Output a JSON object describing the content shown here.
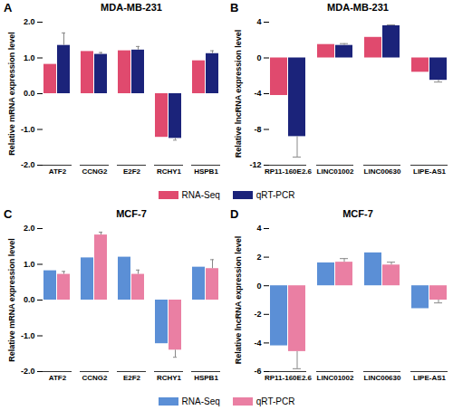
{
  "chart_data": [
    {
      "type": "bar",
      "label": "A",
      "title": "MDA-MB-231",
      "y_label": "Relative mRNA expression level",
      "categories": [
        "ATF2",
        "CCNG2",
        "E2F2",
        "RCHY1",
        "HSPB1"
      ],
      "series": [
        {
          "name": "RNA-Seq",
          "color": "#e04a6e",
          "values": [
            0.82,
            1.18,
            1.2,
            -1.22,
            0.92
          ]
        },
        {
          "name": "qRT-PCR",
          "color": "#1b237a",
          "values": [
            1.35,
            1.1,
            1.22,
            -1.25,
            1.12
          ],
          "errors": [
            0.35,
            0.05,
            0.1,
            0.05,
            0.08
          ]
        }
      ],
      "ylim": [
        -2,
        2
      ],
      "yticks": [
        {
          "value": -2,
          "label": "-2.0"
        },
        {
          "value": -1,
          "label": "-1.0"
        },
        {
          "value": 0,
          "label": "0.0"
        },
        {
          "value": 1,
          "label": "1.0"
        },
        {
          "value": 2,
          "label": "2.0"
        }
      ]
    },
    {
      "type": "bar",
      "label": "B",
      "title": "MDA-MB-231",
      "y_label": "Relative lncRNA expression level",
      "categories": [
        "RP11-160E2.6",
        "LINC01002",
        "LINC00630",
        "LIPE-AS1"
      ],
      "series": [
        {
          "name": "RNA-Seq",
          "color": "#e04a6e",
          "values": [
            -4.2,
            1.5,
            2.3,
            -1.6
          ]
        },
        {
          "name": "qRT-PCR",
          "color": "#1b237a",
          "values": [
            -8.8,
            1.4,
            3.6,
            -2.5
          ],
          "errors": [
            2.3,
            0.2,
            0.1,
            0.2
          ]
        }
      ],
      "ylim": [
        -12,
        4
      ],
      "yticks": [
        -12,
        -8,
        -4,
        0,
        4
      ],
      "legend": "bottom"
    },
    {
      "type": "bar",
      "label": "C",
      "title": "MCF-7",
      "y_label": "Relative mRNA expression level",
      "categories": [
        "ATF2",
        "CCNG2",
        "E2F2",
        "RCHY1",
        "HSPB1"
      ],
      "series": [
        {
          "name": "RNA-Seq",
          "color": "#5b8fd6",
          "values": [
            0.82,
            1.18,
            1.2,
            -1.22,
            0.92
          ]
        },
        {
          "name": "qRT-PCR",
          "color": "#ea7fa3",
          "values": [
            0.72,
            1.82,
            0.72,
            -1.4,
            0.88
          ],
          "errors": [
            0.08,
            0.08,
            0.12,
            0.2,
            0.25
          ]
        }
      ],
      "ylim": [
        -2,
        2
      ],
      "yticks": [
        {
          "value": -2,
          "label": "-2.0"
        },
        {
          "value": -1,
          "label": "-1.0"
        },
        {
          "value": 0,
          "label": "0.0"
        },
        {
          "value": 1,
          "label": "1.0"
        },
        {
          "value": 2,
          "label": "2.0"
        }
      ]
    },
    {
      "type": "bar",
      "label": "D",
      "title": "MCF-7",
      "y_label": "Relative lncRNA expression level",
      "categories": [
        "RP11-160E2.6",
        "LINC01002",
        "LINC00630",
        "LIPE-AS1"
      ],
      "series": [
        {
          "name": "RNA-Seq",
          "color": "#5b8fd6",
          "values": [
            -4.2,
            1.6,
            2.3,
            -1.6
          ]
        },
        {
          "name": "qRT-PCR",
          "color": "#ea7fa3",
          "values": [
            -4.6,
            1.65,
            1.45,
            -1.0
          ],
          "errors": [
            1.2,
            0.25,
            0.2,
            0.2
          ]
        }
      ],
      "ylim": [
        -6,
        4
      ],
      "yticks": [
        -6,
        -4,
        -2,
        0,
        2,
        4
      ],
      "legend": "bottom"
    }
  ]
}
